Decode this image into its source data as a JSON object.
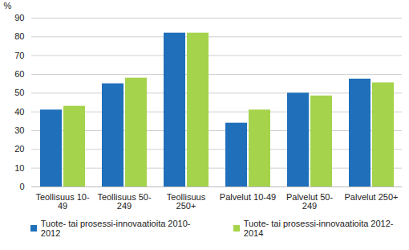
{
  "chart_data": {
    "type": "bar",
    "y_label": "%",
    "categories": [
      "Teollisuus 10-49",
      "Teollisuus 50-249",
      "Teollisuus 250+",
      "Palvelut 10-49",
      "Palvelut 50-249",
      "Palvelut 250+"
    ],
    "series": [
      {
        "name": "Tuote- tai prosessi-innovaatioita 2010-2012",
        "color": "#1f6fba",
        "values": [
          41,
          55,
          82,
          34,
          50,
          57.5
        ]
      },
      {
        "name": "Tuote- tai prosessi-innovaatioita 2012-2014",
        "color": "#a5d34c",
        "values": [
          43,
          58,
          82,
          41,
          48.5,
          55.5
        ]
      }
    ],
    "ylim": [
      0,
      90
    ],
    "yticks": [
      0,
      10,
      20,
      30,
      40,
      50,
      60,
      70,
      80,
      90
    ],
    "grid": true,
    "legend": "bottom"
  }
}
